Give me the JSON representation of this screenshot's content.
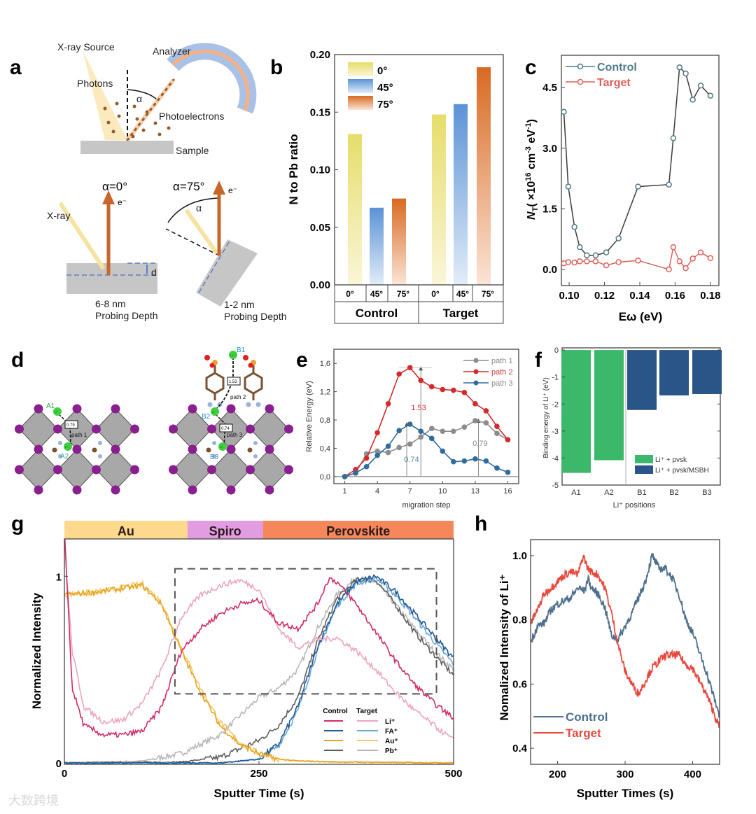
{
  "panel_labels": [
    "a",
    "b",
    "c",
    "d",
    "e",
    "f",
    "g",
    "h"
  ],
  "panel_a": {
    "xray_source": "X-ray Source",
    "analyzer": "Analyzer",
    "photons": "Photons",
    "alpha": "α",
    "photoelectrons": "Photoelectrons",
    "sample": "Sample",
    "alpha0": "α=0°",
    "alpha75": "α=75°",
    "electron": "e⁻",
    "xray": "X-ray",
    "depth_symbol": "d",
    "depth_left": "6-8 nm",
    "depth_right": "1-2 nm",
    "probing_depth": "Probing Depth"
  },
  "panel_d": {
    "li": "Li⁺",
    "sites": [
      "A1",
      "A2",
      "B1",
      "B2",
      "B3"
    ],
    "barriers": [
      "0.79",
      "1.53",
      "0.74"
    ],
    "paths": [
      "path 1",
      "path 2",
      "path 3"
    ]
  },
  "watermark": "大数跨境",
  "chart_data": [
    {
      "panel": "b",
      "type": "bar",
      "title": "",
      "xlabel": "",
      "ylabel": "N to Pb ratio",
      "ylim": [
        0,
        0.2
      ],
      "yticks": [
        0,
        0.05,
        0.1,
        0.15,
        0.2
      ],
      "ytick_labels": [
        "0.00",
        "0.05",
        "0.10",
        "0.15",
        "0.20"
      ],
      "groups": [
        "Control",
        "Target"
      ],
      "categories": [
        "0°",
        "45°",
        "75°"
      ],
      "legend": [
        "0°",
        "45°",
        "75°"
      ],
      "legend_position": "top-left",
      "colors": [
        "#e6dd6a",
        "#5b93d6",
        "#d86a22"
      ],
      "series": [
        {
          "name": "Control",
          "values": [
            0.131,
            0.067,
            0.075
          ]
        },
        {
          "name": "Target",
          "values": [
            0.148,
            0.157,
            0.189
          ]
        }
      ]
    },
    {
      "panel": "c",
      "type": "line",
      "xlabel": "Eω (eV)",
      "ylabel_parts": [
        "N",
        "T",
        "( ×10",
        "16",
        " cm",
        "-3",
        " eV",
        "-1",
        ")"
      ],
      "xlim": [
        0.0956,
        0.1848
      ],
      "ylim": [
        -0.4,
        5.3
      ],
      "xticks": [
        0.1,
        0.12,
        0.14,
        0.16,
        0.18
      ],
      "xtick_labels": [
        "0.10",
        "0.12",
        "0.14",
        "0.16",
        "0.18"
      ],
      "yticks": [
        0,
        1.5,
        3.0,
        4.5
      ],
      "ytick_labels": [
        "0.0",
        "1.5",
        "3.0",
        "4.5"
      ],
      "legend_position": "top-left",
      "series": [
        {
          "name": "Control",
          "color": "#4f7a87",
          "x": [
            0.097,
            0.0995,
            0.103,
            0.106,
            0.11,
            0.115,
            0.121,
            0.128,
            0.139,
            0.1565,
            0.159,
            0.1625,
            0.166,
            0.17,
            0.1745,
            0.18
          ],
          "y": [
            3.9,
            2.05,
            1.05,
            0.55,
            0.35,
            0.35,
            0.42,
            0.77,
            2.05,
            2.1,
            3.25,
            5.0,
            4.85,
            4.2,
            4.55,
            4.3
          ]
        },
        {
          "name": "Target",
          "color": "#e0605a",
          "x": [
            0.097,
            0.0995,
            0.103,
            0.106,
            0.11,
            0.115,
            0.121,
            0.128,
            0.139,
            0.1565,
            0.159,
            0.1625,
            0.166,
            0.17,
            0.1745,
            0.18
          ],
          "y": [
            0.15,
            0.18,
            0.17,
            0.2,
            0.2,
            0.2,
            0.1,
            0.18,
            0.22,
            0.0,
            0.55,
            0.2,
            0.03,
            0.27,
            0.42,
            0.28
          ]
        }
      ]
    },
    {
      "panel": "e",
      "type": "line",
      "xlabel": "migration step",
      "ylabel": "Relative Energy (eV)",
      "xlim": [
        0,
        17
      ],
      "ylim": [
        -0.1,
        1.8
      ],
      "xticks": [
        1,
        4,
        7,
        10,
        13,
        16
      ],
      "xtick_labels": [
        "1",
        "4",
        "7",
        "10",
        "13",
        "16"
      ],
      "yticks": [
        0,
        0.4,
        0.8,
        1.2,
        1.6
      ],
      "ytick_labels": [
        "0,0",
        "0,4",
        "0,8",
        "1,2",
        "1,6"
      ],
      "legend_position": "top-right",
      "x": [
        1,
        2,
        3,
        4,
        5,
        6,
        7,
        8,
        9,
        10,
        11,
        12,
        13,
        14,
        15,
        16
      ],
      "series": [
        {
          "name": "path 1",
          "color": "#8c8c8c",
          "y": [
            0,
            0.05,
            0.32,
            0.36,
            0.34,
            0.41,
            0.46,
            0.56,
            0.68,
            0.64,
            0.64,
            0.7,
            0.79,
            0.76,
            0.61,
            0.52
          ]
        },
        {
          "name": "path 2",
          "color": "#d42a2a",
          "y": [
            0,
            0.1,
            0.26,
            0.62,
            1.03,
            1.45,
            1.54,
            1.36,
            1.27,
            1.23,
            1.22,
            1.19,
            1.03,
            0.93,
            0.71,
            0.52
          ]
        },
        {
          "name": "path 3",
          "color": "#2f6c9c",
          "y": [
            0,
            0.05,
            0.14,
            0.3,
            0.43,
            0.65,
            0.74,
            0.64,
            0.54,
            0.36,
            0.21,
            0.22,
            0.25,
            0.22,
            0.12,
            0.06
          ]
        }
      ],
      "annotations": [
        {
          "text": "1.53",
          "x": 8,
          "y": 1.53,
          "color": "#d42a2a"
        },
        {
          "text": "0.74",
          "x": 6.7,
          "y": 0.74,
          "color": "#4f86a8"
        },
        {
          "text": "0.79",
          "x": 13.3,
          "y": 0.79,
          "color": "#8c8c8c"
        }
      ]
    },
    {
      "panel": "f",
      "type": "bar",
      "xlabel": "Li⁺ positions",
      "ylabel": "Binding energy of Li⁺ (eV)",
      "ylim": [
        -5,
        0
      ],
      "yticks": [
        0,
        -1,
        -2,
        -3,
        -4,
        -5
      ],
      "ytick_labels": [
        "0",
        "-1",
        "-2",
        "-3",
        "-4",
        "-5"
      ],
      "categories": [
        "A1",
        "A2",
        "B1",
        "B2",
        "B3"
      ],
      "values": [
        -4.55,
        -4.08,
        -2.22,
        -1.68,
        -1.63
      ],
      "series_of_category": [
        0,
        0,
        1,
        1,
        1
      ],
      "legend_position": "bottom-right",
      "series": [
        {
          "name": "Li⁺ + pvsk",
          "color": "#3cb86a"
        },
        {
          "name": "Li⁺ + pvsk/MSBH",
          "color": "#2a5589"
        }
      ]
    },
    {
      "panel": "g",
      "type": "line",
      "xlabel": "Sputter Time (s)",
      "ylabel": "Normalized Intensity",
      "xlim": [
        0,
        500
      ],
      "ylim": [
        0,
        1.2
      ],
      "xticks": [
        0,
        250,
        500
      ],
      "xtick_labels": [
        "0",
        "250",
        "500"
      ],
      "yticks": [
        0,
        1
      ],
      "ytick_labels": [
        "0",
        "1"
      ],
      "layers": [
        {
          "name": "Au",
          "from": 0,
          "to": 158,
          "color": "#fcd98c"
        },
        {
          "name": "Spiro",
          "from": 158,
          "to": 255,
          "color": "#e29ce2"
        },
        {
          "name": "Perovskite",
          "from": 255,
          "to": 500,
          "color": "#f5875a"
        }
      ],
      "zoom_box": {
        "x": [
          142,
          478
        ],
        "y": [
          0.37,
          1.04
        ]
      },
      "legend_headers": [
        "Control",
        "Target"
      ],
      "legend_ions": [
        "Li⁺",
        "FA⁺",
        "Au⁺",
        "Pb⁺"
      ],
      "legend_position": "bottom-right",
      "series": [
        {
          "name": "Control Li⁺",
          "color": "#d22a68",
          "x": [
            0,
            3,
            10,
            25,
            50,
            75,
            100,
            125,
            150,
            175,
            200,
            225,
            250,
            275,
            300,
            325,
            340,
            350,
            375,
            400,
            425,
            450,
            475,
            500
          ],
          "y": [
            1.25,
            1.0,
            0.4,
            0.2,
            0.15,
            0.15,
            0.17,
            0.3,
            0.6,
            0.72,
            0.8,
            0.85,
            0.87,
            0.75,
            0.72,
            0.85,
            0.99,
            0.97,
            0.85,
            0.7,
            0.55,
            0.42,
            0.32,
            0.24
          ]
        },
        {
          "name": "Target Li⁺",
          "color": "#eea4bf",
          "x": [
            0,
            3,
            10,
            25,
            50,
            75,
            100,
            125,
            150,
            175,
            200,
            225,
            250,
            275,
            300,
            325,
            350,
            375,
            400,
            425,
            450,
            475,
            500
          ],
          "y": [
            1.25,
            1.0,
            0.6,
            0.3,
            0.22,
            0.23,
            0.32,
            0.5,
            0.78,
            0.9,
            0.95,
            0.98,
            0.93,
            0.72,
            0.62,
            0.66,
            0.67,
            0.6,
            0.5,
            0.38,
            0.28,
            0.2,
            0.12
          ]
        },
        {
          "name": "Control FA⁺",
          "color": "#1d5a96",
          "x": [
            0,
            200,
            250,
            275,
            300,
            325,
            350,
            375,
            400,
            425,
            450,
            475,
            500
          ],
          "y": [
            0,
            0,
            0.02,
            0.1,
            0.3,
            0.62,
            0.85,
            0.97,
            1.0,
            0.92,
            0.8,
            0.68,
            0.56
          ]
        },
        {
          "name": "Target FA⁺",
          "color": "#6fa7d8",
          "x": [
            0,
            200,
            250,
            275,
            300,
            325,
            350,
            375,
            400,
            425,
            450,
            475,
            500
          ],
          "y": [
            0,
            0,
            0.02,
            0.09,
            0.28,
            0.6,
            0.84,
            0.96,
            0.99,
            0.9,
            0.78,
            0.65,
            0.53
          ]
        },
        {
          "name": "Control Au⁺",
          "color": "#e8a21c",
          "x": [
            0,
            50,
            100,
            125,
            150,
            175,
            200,
            225,
            250,
            275,
            300,
            350,
            500
          ],
          "y": [
            0.9,
            0.92,
            0.95,
            0.85,
            0.6,
            0.38,
            0.2,
            0.1,
            0.05,
            0.02,
            0.01,
            0.005,
            0
          ]
        },
        {
          "name": "Target Au⁺",
          "color": "#f5c96a",
          "x": [
            0,
            50,
            100,
            125,
            150,
            175,
            200,
            225,
            250,
            275,
            300,
            350,
            500
          ],
          "y": [
            0.9,
            0.92,
            0.96,
            0.86,
            0.62,
            0.4,
            0.22,
            0.11,
            0.05,
            0.02,
            0.01,
            0.005,
            0
          ]
        },
        {
          "name": "Control Pb⁺",
          "color": "#5e5e5e",
          "x": [
            0,
            150,
            200,
            250,
            275,
            300,
            325,
            350,
            375,
            400,
            425,
            450,
            475,
            500
          ],
          "y": [
            0,
            0.005,
            0.03,
            0.12,
            0.2,
            0.35,
            0.65,
            0.88,
            0.98,
            0.98,
            0.85,
            0.7,
            0.58,
            0.47
          ]
        },
        {
          "name": "Target Pb⁺",
          "color": "#b8b8b8",
          "x": [
            0,
            100,
            150,
            200,
            225,
            250,
            275,
            300,
            325,
            350,
            375,
            400,
            425,
            450,
            475,
            500
          ],
          "y": [
            0,
            0.01,
            0.05,
            0.15,
            0.25,
            0.35,
            0.4,
            0.5,
            0.72,
            0.9,
            0.99,
            0.97,
            0.85,
            0.72,
            0.6,
            0.5
          ]
        }
      ]
    },
    {
      "panel": "h",
      "type": "line",
      "xlabel": "Sputter Times (s)",
      "ylabel": "Nomalized Intensity of Li⁺",
      "xlim": [
        160,
        440
      ],
      "ylim": [
        0.35,
        1.05
      ],
      "xticks": [
        200,
        300,
        400
      ],
      "xtick_labels": [
        "200",
        "300",
        "400"
      ],
      "yticks": [
        0.4,
        0.6,
        0.8,
        1.0
      ],
      "ytick_labels": [
        "0.4",
        "0.6",
        "0.8",
        "1.0"
      ],
      "legend_position": "bottom-left",
      "series": [
        {
          "name": "Control",
          "color": "#4d6e8c",
          "x": [
            160,
            170,
            180,
            190,
            200,
            210,
            220,
            230,
            240,
            245,
            250,
            260,
            270,
            280,
            290,
            300,
            310,
            320,
            330,
            340,
            350,
            360,
            370,
            380,
            390,
            400,
            410,
            420,
            430,
            440
          ],
          "y": [
            0.73,
            0.78,
            0.79,
            0.83,
            0.85,
            0.86,
            0.87,
            0.9,
            0.89,
            0.93,
            0.9,
            0.88,
            0.84,
            0.75,
            0.74,
            0.78,
            0.82,
            0.87,
            0.92,
            1.0,
            0.96,
            0.96,
            0.93,
            0.88,
            0.8,
            0.76,
            0.7,
            0.64,
            0.57,
            0.5
          ]
        },
        {
          "name": "Target",
          "color": "#e8493e",
          "x": [
            160,
            170,
            180,
            190,
            200,
            210,
            220,
            230,
            238,
            245,
            250,
            260,
            270,
            280,
            290,
            300,
            310,
            320,
            330,
            340,
            350,
            360,
            370,
            380,
            390,
            400,
            410,
            420,
            430,
            440
          ],
          "y": [
            0.79,
            0.83,
            0.88,
            0.9,
            0.92,
            0.94,
            0.95,
            0.94,
            1.0,
            0.96,
            0.95,
            0.94,
            0.9,
            0.82,
            0.72,
            0.64,
            0.6,
            0.57,
            0.61,
            0.65,
            0.67,
            0.69,
            0.69,
            0.69,
            0.66,
            0.65,
            0.61,
            0.57,
            0.52,
            0.46
          ]
        }
      ]
    }
  ]
}
